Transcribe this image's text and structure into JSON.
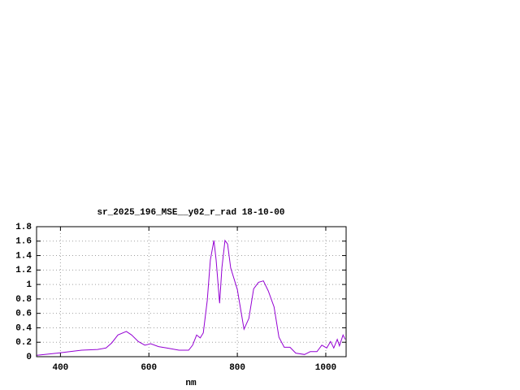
{
  "chart_data": {
    "type": "line",
    "title": "sr_2025_196_MSE__y02_r_rad 18-10-00",
    "xlabel": "nm",
    "x": [
      347,
      393,
      448,
      484,
      503,
      516,
      530,
      549,
      561,
      576,
      591,
      604,
      622,
      640,
      668,
      690,
      699,
      708,
      716,
      723,
      732,
      739,
      747,
      752,
      760,
      765,
      772,
      778,
      785,
      800,
      815,
      826,
      837,
      848,
      859,
      870,
      883,
      894,
      906,
      919,
      932,
      952,
      965,
      980,
      991,
      1002,
      1011,
      1018,
      1026,
      1031,
      1039,
      1044
    ],
    "values": [
      0.02,
      0.05,
      0.09,
      0.1,
      0.12,
      0.19,
      0.3,
      0.35,
      0.3,
      0.21,
      0.16,
      0.18,
      0.14,
      0.12,
      0.09,
      0.09,
      0.16,
      0.3,
      0.26,
      0.33,
      0.78,
      1.34,
      1.61,
      1.34,
      0.74,
      1.23,
      1.61,
      1.56,
      1.23,
      0.93,
      0.38,
      0.53,
      0.94,
      1.03,
      1.05,
      0.91,
      0.69,
      0.27,
      0.13,
      0.13,
      0.05,
      0.03,
      0.07,
      0.07,
      0.16,
      0.12,
      0.21,
      0.12,
      0.24,
      0.15,
      0.3,
      0.24
    ],
    "color": "#9400d3",
    "xlim": [
      346,
      1046
    ],
    "xticks": [
      400,
      600,
      800,
      1000
    ],
    "ylim": [
      0,
      1.8
    ],
    "yticks": [
      0,
      0.2,
      0.4,
      0.6,
      0.8,
      1,
      1.2,
      1.4,
      1.6,
      1.8
    ],
    "grid": true
  }
}
